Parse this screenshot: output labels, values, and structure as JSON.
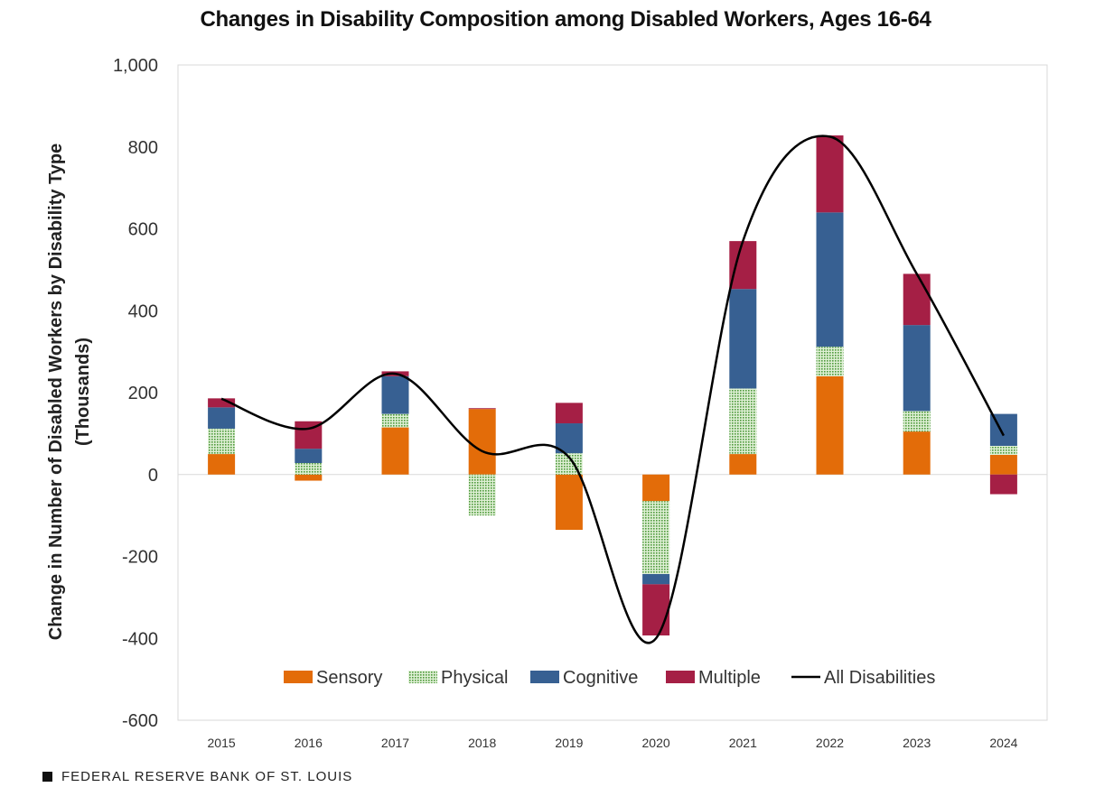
{
  "chart_data": {
    "type": "bar",
    "title": "Changes in Disability Composition among Disabled Workers, Ages 16-64",
    "ylabel_lines": [
      "Change in Number of Disabled Workers by Disability Type",
      "(Thousands)"
    ],
    "xlabel": "",
    "categories": [
      "2015",
      "2016",
      "2017",
      "2018",
      "2019",
      "2020",
      "2021",
      "2022",
      "2023",
      "2024"
    ],
    "ylim": [
      -600,
      1000
    ],
    "yticks": [
      -600,
      -400,
      -200,
      0,
      200,
      400,
      600,
      800,
      1000
    ],
    "ytick_labels": [
      "-600",
      "-400",
      "-200",
      "0",
      "200",
      "400",
      "600",
      "800",
      "1,000"
    ],
    "stacked": true,
    "grid": false,
    "legend_position": "bottom-inside",
    "series": [
      {
        "name": "Sensory",
        "kind": "bar",
        "color": "#E36C09",
        "pattern": "solid",
        "values": [
          50,
          -15,
          115,
          160,
          -135,
          -65,
          50,
          240,
          105,
          48
        ]
      },
      {
        "name": "Physical",
        "kind": "bar",
        "color": "#4E9A3C",
        "pattern": "dots",
        "values": [
          62,
          28,
          33,
          -100,
          52,
          -178,
          160,
          72,
          50,
          22
        ]
      },
      {
        "name": "Cognitive",
        "kind": "bar",
        "color": "#376092",
        "pattern": "solid",
        "values": [
          52,
          35,
          92,
          0,
          73,
          -25,
          243,
          328,
          210,
          78
        ]
      },
      {
        "name": "Multiple",
        "kind": "bar",
        "color": "#A51F45",
        "pattern": "solid",
        "values": [
          22,
          67,
          12,
          2,
          50,
          -125,
          117,
          188,
          125,
          -48
        ]
      },
      {
        "name": "All Disabilities",
        "kind": "line",
        "color": "#000000",
        "values": [
          185,
          112,
          246,
          57,
          42,
          -400,
          570,
          825,
          490,
          95
        ]
      }
    ]
  },
  "footer": {
    "source": "FEDERAL RESERVE BANK OF ST. LOUIS"
  }
}
